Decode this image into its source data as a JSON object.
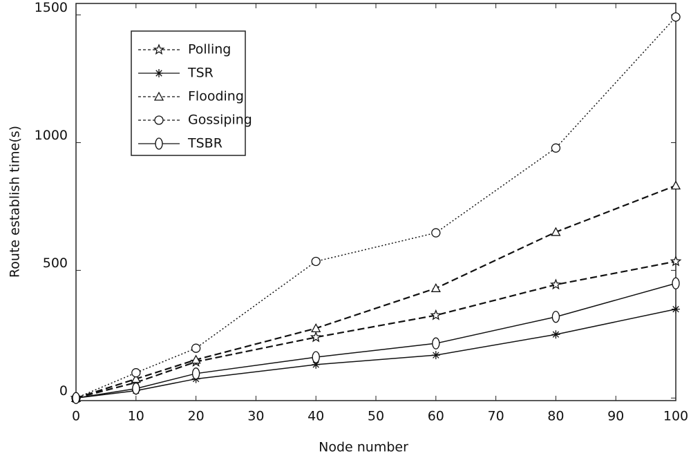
{
  "chart_data": {
    "type": "line",
    "x_label": "Node number",
    "y_label": "Route establish time(s)",
    "x": [
      0,
      10,
      20,
      40,
      60,
      80,
      100
    ],
    "xlim": [
      0,
      100
    ],
    "xticks": [
      0,
      10,
      20,
      30,
      40,
      50,
      60,
      70,
      80,
      90,
      100
    ],
    "ylim": [
      -10,
      1545
    ],
    "yticks": [
      0,
      500,
      1000,
      1500
    ],
    "legend": "upper left",
    "series": [
      {
        "name": "Polling",
        "color": "#111111",
        "dash": "dashed",
        "marker": "star",
        "values": [
          0,
          61,
          142,
          238,
          324,
          444,
          535
        ]
      },
      {
        "name": "TSR",
        "color": "#111111",
        "dash": "solid",
        "marker": "asterisk",
        "values": [
          0,
          29,
          75,
          131,
          168,
          249,
          348
        ]
      },
      {
        "name": "Flooding",
        "color": "#111111",
        "dash": "dashed",
        "marker": "triangle",
        "values": [
          0,
          75,
          150,
          273,
          430,
          650,
          832
        ]
      },
      {
        "name": "Gossiping",
        "color": "#111111",
        "dash": "dotted",
        "marker": "circle",
        "values": [
          0,
          99,
          195,
          535,
          647,
          979,
          1492
        ]
      },
      {
        "name": "TSBR",
        "color": "#111111",
        "dash": "solid",
        "marker": "ellipse",
        "values": [
          0,
          37,
          96,
          160,
          214,
          318,
          449
        ]
      }
    ]
  }
}
